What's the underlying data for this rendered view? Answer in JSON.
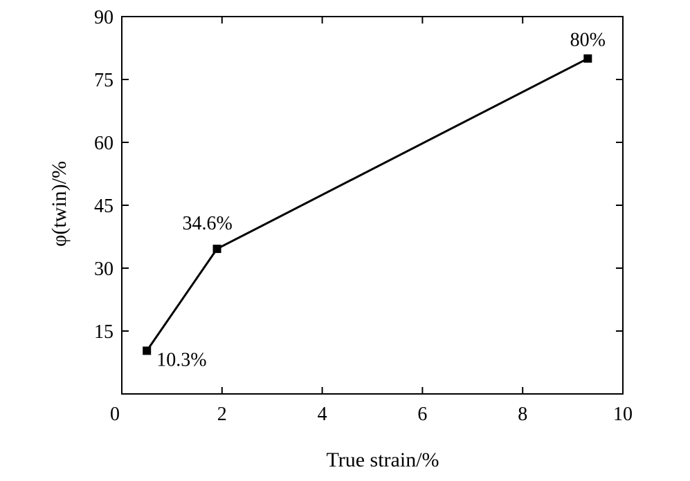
{
  "chart_data": {
    "type": "line",
    "title": "",
    "xlabel": "True strain/%",
    "ylabel": "φ(twin)/%",
    "xlim": [
      0,
      10
    ],
    "ylim": [
      0,
      90
    ],
    "x_ticks": [
      0,
      2,
      4,
      6,
      8,
      10
    ],
    "y_ticks": [
      15,
      30,
      45,
      60,
      75,
      90
    ],
    "grid": false,
    "legend": "none",
    "marker": "square",
    "line_color": "#000000",
    "series": [
      {
        "x": [
          0.5,
          1.9,
          9.3
        ],
        "y": [
          10.3,
          34.6,
          80
        ],
        "labels": [
          "10.3%",
          "34.6%",
          "80%"
        ]
      }
    ]
  }
}
